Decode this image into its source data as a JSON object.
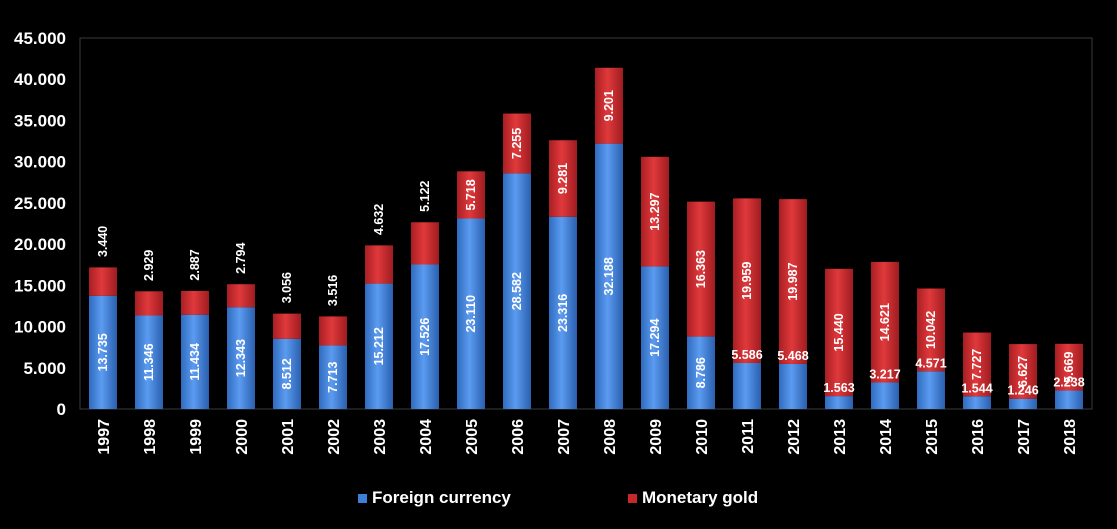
{
  "chart_data": {
    "type": "bar",
    "stacked": true,
    "categories": [
      "1997",
      "1998",
      "1999",
      "2000",
      "2001",
      "2002",
      "2003",
      "2004",
      "2005",
      "2006",
      "2007",
      "2008",
      "2009",
      "2010",
      "2011",
      "2012",
      "2013",
      "2014",
      "2015",
      "2016",
      "2017",
      "2018"
    ],
    "series": [
      {
        "name": "Foreign currency",
        "color": "#3d7fd6",
        "values": [
          13735,
          11346,
          11434,
          12343,
          8512,
          7713,
          15212,
          17526,
          23110,
          28582,
          23316,
          32188,
          17294,
          8786,
          5586,
          5468,
          1563,
          3217,
          4571,
          1544,
          1246,
          2238
        ],
        "labels": [
          "13.735",
          "11.346",
          "11.434",
          "12.343",
          "8.512",
          "7.713",
          "15.212",
          "17.526",
          "23.110",
          "28.582",
          "23.316",
          "32.188",
          "17.294",
          "8.786",
          "5.586",
          "5.468",
          "1.563",
          "3.217",
          "4.571",
          "1.544",
          "1.246",
          "2.238"
        ]
      },
      {
        "name": "Monetary gold",
        "color": "#c8282a",
        "values": [
          3440,
          2929,
          2887,
          2794,
          3056,
          3516,
          4632,
          5122,
          5718,
          7255,
          9281,
          9201,
          13297,
          16363,
          19959,
          19987,
          15440,
          14621,
          10042,
          7727,
          6627,
          5669
        ],
        "labels": [
          "3.440",
          "2.929",
          "2.887",
          "2.794",
          "3.056",
          "3.516",
          "4.632",
          "5.122",
          "5.718",
          "7.255",
          "9.281",
          "9.201",
          "13.297",
          "16.363",
          "19.959",
          "19.987",
          "15.440",
          "14.621",
          "10.042",
          "7.727",
          "6.627",
          "5.669"
        ]
      }
    ],
    "ylim": [
      0,
      45000
    ],
    "yticks": [
      0,
      5000,
      10000,
      15000,
      20000,
      25000,
      30000,
      35000,
      40000,
      45000
    ],
    "ytick_labels": [
      "0",
      "5.000",
      "10.000",
      "15.000",
      "20.000",
      "25.000",
      "30.000",
      "35.000",
      "40.000",
      "45.000"
    ],
    "grid": false,
    "legend_position": "bottom",
    "background": "#000000",
    "text_color": "#ffffff"
  }
}
